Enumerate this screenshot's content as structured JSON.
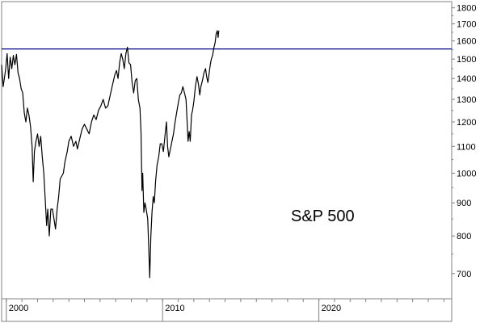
{
  "chart_data": {
    "type": "line",
    "annotation": "S&P 500",
    "scale": "log",
    "ylim": [
      640,
      1840
    ],
    "xlim": [
      1999.7,
      2028.5
    ],
    "y_ticks": [
      {
        "value": 700,
        "label": "700"
      },
      {
        "value": 800,
        "label": "800"
      },
      {
        "value": 900,
        "label": "900"
      },
      {
        "value": 1000,
        "label": "1000"
      },
      {
        "value": 1100,
        "label": "1100"
      },
      {
        "value": 1200,
        "label": "1200"
      },
      {
        "value": 1300,
        "label": "1300"
      },
      {
        "value": 1400,
        "label": "1400"
      },
      {
        "value": 1500,
        "label": "1500"
      },
      {
        "value": 1600,
        "label": "1600"
      },
      {
        "value": 1700,
        "label": "1700"
      },
      {
        "value": 1800,
        "label": "1800"
      }
    ],
    "x_ticks": [
      {
        "value": 2000,
        "label": "2000"
      },
      {
        "value": 2010,
        "label": "2010"
      },
      {
        "value": 2020,
        "label": "2020"
      }
    ],
    "hline": {
      "value": 1555,
      "color": "#00008b"
    },
    "series": [
      {
        "color": "#000000",
        "points": [
          [
            1999.7,
            1470
          ],
          [
            1999.8,
            1360
          ],
          [
            1999.95,
            1440
          ],
          [
            2000.05,
            1530
          ],
          [
            2000.15,
            1400
          ],
          [
            2000.25,
            1510
          ],
          [
            2000.35,
            1450
          ],
          [
            2000.45,
            1520
          ],
          [
            2000.55,
            1470
          ],
          [
            2000.65,
            1525
          ],
          [
            2000.75,
            1430
          ],
          [
            2000.85,
            1400
          ],
          [
            2000.95,
            1350
          ],
          [
            2001.05,
            1330
          ],
          [
            2001.15,
            1240
          ],
          [
            2001.25,
            1200
          ],
          [
            2001.35,
            1260
          ],
          [
            2001.45,
            1230
          ],
          [
            2001.55,
            1180
          ],
          [
            2001.65,
            1100
          ],
          [
            2001.72,
            970
          ],
          [
            2001.8,
            1080
          ],
          [
            2001.9,
            1120
          ],
          [
            2002.0,
            1150
          ],
          [
            2002.1,
            1100
          ],
          [
            2002.2,
            1140
          ],
          [
            2002.3,
            1060
          ],
          [
            2002.4,
            1000
          ],
          [
            2002.5,
            900
          ],
          [
            2002.58,
            830
          ],
          [
            2002.65,
            880
          ],
          [
            2002.75,
            800
          ],
          [
            2002.85,
            880
          ],
          [
            2002.95,
            880
          ],
          [
            2003.05,
            850
          ],
          [
            2003.15,
            820
          ],
          [
            2003.25,
            880
          ],
          [
            2003.35,
            920
          ],
          [
            2003.45,
            980
          ],
          [
            2003.55,
            990
          ],
          [
            2003.65,
            1000
          ],
          [
            2003.75,
            1040
          ],
          [
            2003.9,
            1080
          ],
          [
            2004.0,
            1120
          ],
          [
            2004.15,
            1140
          ],
          [
            2004.3,
            1100
          ],
          [
            2004.45,
            1120
          ],
          [
            2004.55,
            1090
          ],
          [
            2004.7,
            1130
          ],
          [
            2004.85,
            1170
          ],
          [
            2005.0,
            1190
          ],
          [
            2005.15,
            1170
          ],
          [
            2005.3,
            1150
          ],
          [
            2005.45,
            1200
          ],
          [
            2005.6,
            1230
          ],
          [
            2005.75,
            1210
          ],
          [
            2005.9,
            1250
          ],
          [
            2006.05,
            1270
          ],
          [
            2006.2,
            1300
          ],
          [
            2006.35,
            1260
          ],
          [
            2006.5,
            1270
          ],
          [
            2006.65,
            1320
          ],
          [
            2006.8,
            1370
          ],
          [
            2006.95,
            1420
          ],
          [
            2007.05,
            1440
          ],
          [
            2007.15,
            1400
          ],
          [
            2007.25,
            1480
          ],
          [
            2007.35,
            1530
          ],
          [
            2007.45,
            1500
          ],
          [
            2007.55,
            1450
          ],
          [
            2007.65,
            1530
          ],
          [
            2007.75,
            1565
          ],
          [
            2007.85,
            1480
          ],
          [
            2007.95,
            1470
          ],
          [
            2008.05,
            1380
          ],
          [
            2008.15,
            1330
          ],
          [
            2008.25,
            1390
          ],
          [
            2008.35,
            1400
          ],
          [
            2008.45,
            1300
          ],
          [
            2008.55,
            1260
          ],
          [
            2008.62,
            1160
          ],
          [
            2008.68,
            940
          ],
          [
            2008.73,
            1000
          ],
          [
            2008.8,
            870
          ],
          [
            2008.87,
            900
          ],
          [
            2008.95,
            880
          ],
          [
            2009.05,
            850
          ],
          [
            2009.12,
            760
          ],
          [
            2009.18,
            690
          ],
          [
            2009.25,
            800
          ],
          [
            2009.32,
            870
          ],
          [
            2009.4,
            920
          ],
          [
            2009.47,
            900
          ],
          [
            2009.55,
            970
          ],
          [
            2009.65,
            1030
          ],
          [
            2009.75,
            1060
          ],
          [
            2009.85,
            1110
          ],
          [
            2009.95,
            1110
          ],
          [
            2010.05,
            1080
          ],
          [
            2010.15,
            1140
          ],
          [
            2010.25,
            1200
          ],
          [
            2010.32,
            1100
          ],
          [
            2010.4,
            1060
          ],
          [
            2010.5,
            1090
          ],
          [
            2010.6,
            1120
          ],
          [
            2010.7,
            1150
          ],
          [
            2010.8,
            1200
          ],
          [
            2010.9,
            1240
          ],
          [
            2011.0,
            1280
          ],
          [
            2011.1,
            1320
          ],
          [
            2011.2,
            1330
          ],
          [
            2011.3,
            1360
          ],
          [
            2011.4,
            1330
          ],
          [
            2011.5,
            1300
          ],
          [
            2011.57,
            1200
          ],
          [
            2011.63,
            1120
          ],
          [
            2011.7,
            1160
          ],
          [
            2011.77,
            1120
          ],
          [
            2011.85,
            1230
          ],
          [
            2011.92,
            1250
          ],
          [
            2012.0,
            1290
          ],
          [
            2012.1,
            1360
          ],
          [
            2012.2,
            1410
          ],
          [
            2012.3,
            1370
          ],
          [
            2012.38,
            1320
          ],
          [
            2012.45,
            1360
          ],
          [
            2012.55,
            1390
          ],
          [
            2012.65,
            1430
          ],
          [
            2012.75,
            1450
          ],
          [
            2012.82,
            1410
          ],
          [
            2012.9,
            1380
          ],
          [
            2012.97,
            1420
          ],
          [
            2013.05,
            1470
          ],
          [
            2013.12,
            1500
          ],
          [
            2013.2,
            1520
          ],
          [
            2013.28,
            1560
          ],
          [
            2013.36,
            1590
          ],
          [
            2013.43,
            1640
          ],
          [
            2013.5,
            1660
          ],
          [
            2013.55,
            1620
          ],
          [
            2013.6,
            1660
          ]
        ]
      }
    ]
  }
}
